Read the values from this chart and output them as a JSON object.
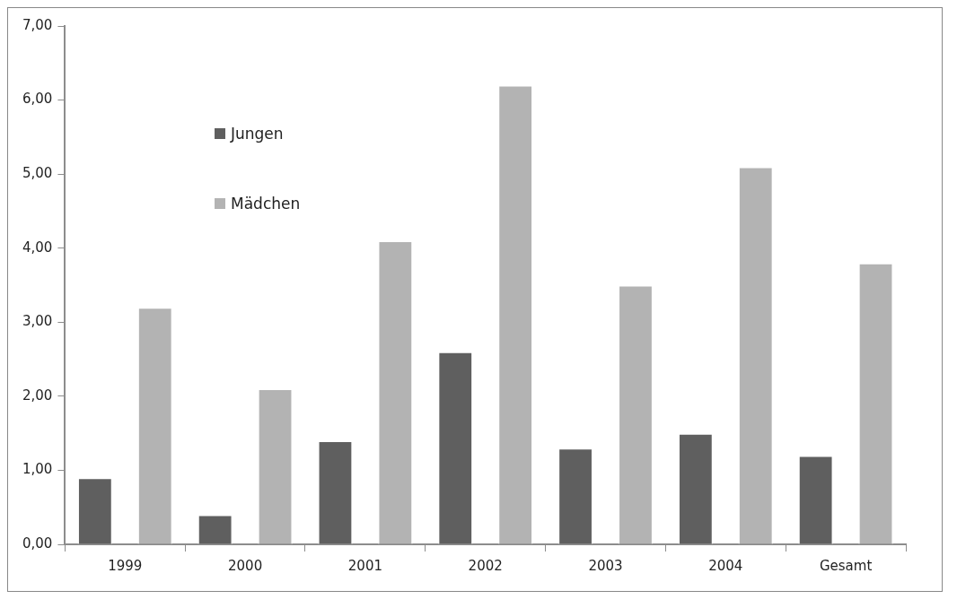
{
  "chart_data": {
    "type": "bar",
    "categories": [
      "1999",
      "2000",
      "2001",
      "2002",
      "2003",
      "2004",
      "Gesamt"
    ],
    "series": [
      {
        "name": "Jungen",
        "color": "#5f5f5f",
        "values": [
          0.9,
          0.4,
          1.4,
          2.6,
          1.3,
          1.5,
          1.2
        ]
      },
      {
        "name": "Mädchen",
        "color": "#b3b3b3",
        "values": [
          3.2,
          2.1,
          4.1,
          6.2,
          3.5,
          5.1,
          3.8
        ]
      }
    ],
    "ylim": [
      0,
      7
    ],
    "yticks": [
      {
        "value": 0,
        "label": "0,00"
      },
      {
        "value": 1,
        "label": "1,00"
      },
      {
        "value": 2,
        "label": "2,00"
      },
      {
        "value": 3,
        "label": "3,00"
      },
      {
        "value": 4,
        "label": "4,00"
      },
      {
        "value": 5,
        "label": "5,00"
      },
      {
        "value": 6,
        "label": "6,00"
      },
      {
        "value": 7,
        "label": "7,00"
      }
    ],
    "grid": false,
    "legend": "top left"
  }
}
